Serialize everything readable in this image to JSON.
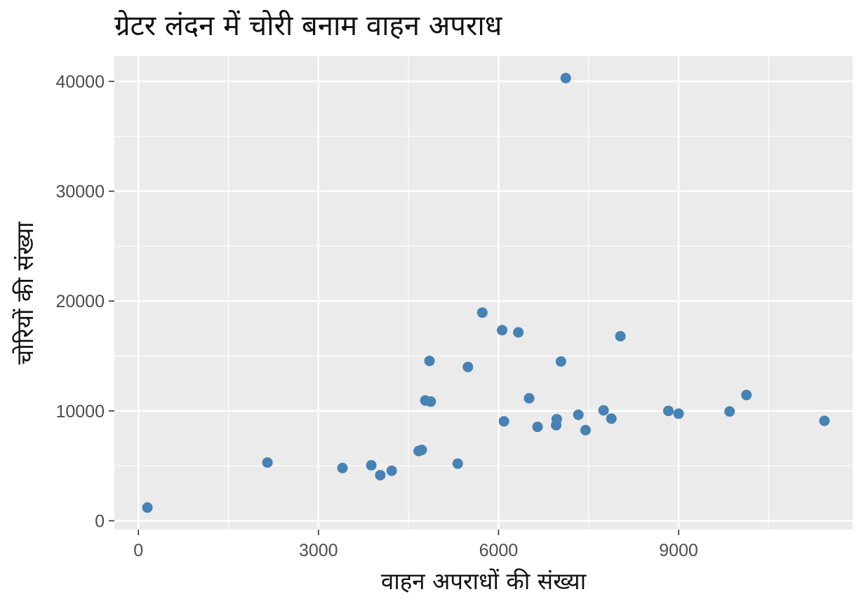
{
  "chart_data": {
    "type": "scatter",
    "title": "ग्रेटर लंदन में चोरी बनाम वाहन अपराध",
    "xlabel": "वाहन अपराधों की संख्या",
    "ylabel": "चोरियों की संख्या",
    "xlim": [
      -400,
      11900
    ],
    "ylim": [
      -800,
      42300
    ],
    "x_ticks": [
      0,
      3000,
      6000,
      9000
    ],
    "x_tick_labels": [
      "0",
      "3000",
      "6000",
      "9000"
    ],
    "y_ticks": [
      0,
      10000,
      20000,
      30000,
      40000
    ],
    "y_tick_labels": [
      "0",
      "10000",
      "20000",
      "30000",
      "40000"
    ],
    "x_minor_ticks": [
      1500,
      4500,
      7500,
      10500
    ],
    "y_minor_ticks": [
      5000,
      15000,
      25000,
      35000
    ],
    "grid": true,
    "point_color": "#4682b4",
    "panel_color": "#ebebeb",
    "points": [
      {
        "x": 150,
        "y": 1200
      },
      {
        "x": 2150,
        "y": 5300
      },
      {
        "x": 3400,
        "y": 4800
      },
      {
        "x": 3880,
        "y": 5050
      },
      {
        "x": 4030,
        "y": 4150
      },
      {
        "x": 4220,
        "y": 4550
      },
      {
        "x": 4670,
        "y": 6350
      },
      {
        "x": 4720,
        "y": 6450
      },
      {
        "x": 4780,
        "y": 10950
      },
      {
        "x": 4850,
        "y": 14550
      },
      {
        "x": 4870,
        "y": 10850
      },
      {
        "x": 5320,
        "y": 5200
      },
      {
        "x": 5490,
        "y": 14000
      },
      {
        "x": 5730,
        "y": 18950
      },
      {
        "x": 6060,
        "y": 17350
      },
      {
        "x": 6090,
        "y": 9050
      },
      {
        "x": 6330,
        "y": 17150
      },
      {
        "x": 6510,
        "y": 11150
      },
      {
        "x": 6650,
        "y": 8550
      },
      {
        "x": 6960,
        "y": 8700
      },
      {
        "x": 6970,
        "y": 9250
      },
      {
        "x": 7040,
        "y": 14500
      },
      {
        "x": 7120,
        "y": 40300
      },
      {
        "x": 7330,
        "y": 9650
      },
      {
        "x": 7450,
        "y": 8250
      },
      {
        "x": 7750,
        "y": 10050
      },
      {
        "x": 7880,
        "y": 9300
      },
      {
        "x": 8030,
        "y": 16800
      },
      {
        "x": 8830,
        "y": 10000
      },
      {
        "x": 9000,
        "y": 9750
      },
      {
        "x": 9850,
        "y": 9950
      },
      {
        "x": 10130,
        "y": 11450
      },
      {
        "x": 11430,
        "y": 9100
      }
    ]
  }
}
